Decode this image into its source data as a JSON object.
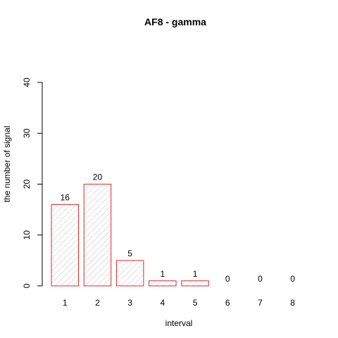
{
  "chart_data": {
    "type": "bar",
    "title": "AF8  -  gamma",
    "xlabel": "interval",
    "ylabel": "the number of signal",
    "categories": [
      "1",
      "2",
      "3",
      "4",
      "5",
      "6",
      "7",
      "8"
    ],
    "values": [
      16,
      20,
      5,
      1,
      1,
      0,
      0,
      0
    ],
    "data_labels": [
      "16",
      "20",
      "5",
      "1",
      "1",
      "0",
      "0",
      "0"
    ],
    "ylim": [
      0,
      40
    ],
    "yticks": [
      0,
      10,
      20,
      30,
      40
    ],
    "ytick_labels": [
      "0",
      "10",
      "20",
      "30",
      "40"
    ],
    "bar_border_color": "#e0282e",
    "bar_hatch_color": "#b4b4b4",
    "grid": false
  }
}
